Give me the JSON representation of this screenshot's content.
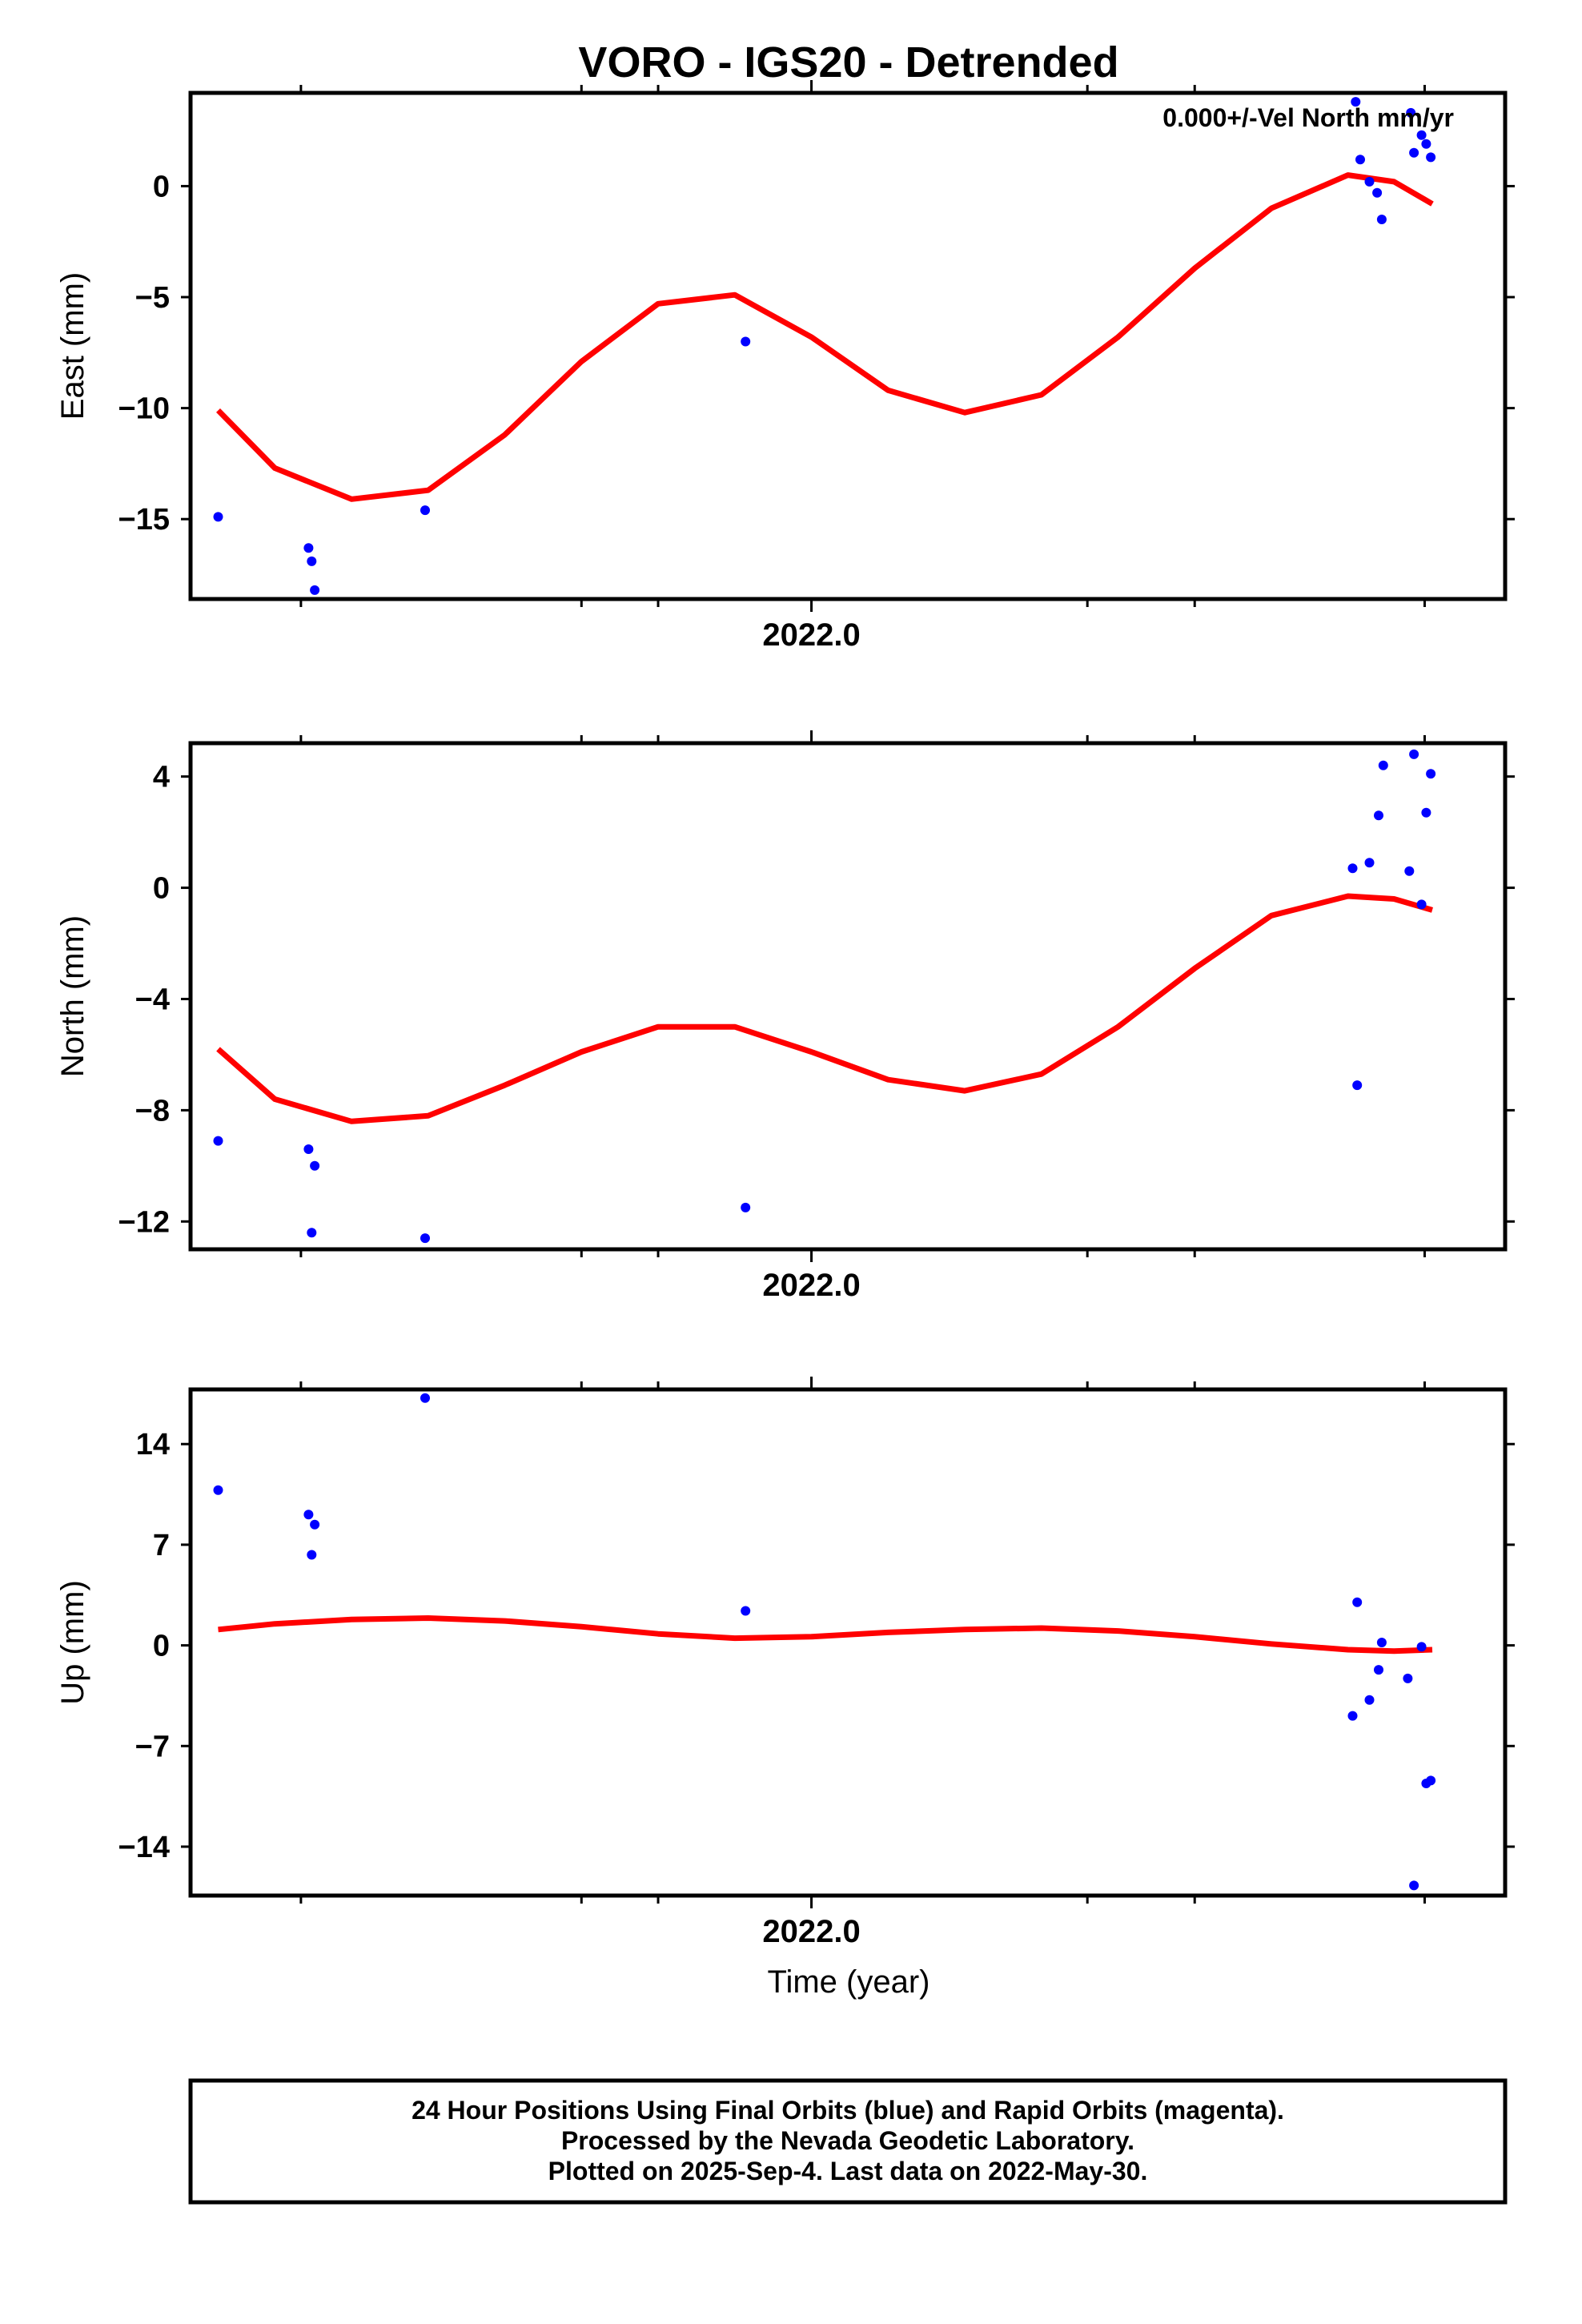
{
  "chart_data": {
    "title": "VORO - IGS20 - Detrended",
    "annotation": "0.000+/-Vel North mm/yr",
    "xlabel": "Time (year)",
    "x_tick_label": "2022.0",
    "xlim": [
      2021.595,
      2022.4525
    ],
    "colors": {
      "data": "#0000ff",
      "fit": "#ff0000",
      "frame": "#000000"
    },
    "panels": [
      {
        "type": "scatter",
        "name": "east",
        "ylabel": "East (mm)",
        "ylim": [
          -18.6,
          4.2
        ],
        "yticks": [
          0,
          -5,
          -10,
          -15
        ],
        "tick_labels": [
          "0",
          "−5",
          "−10",
          "−15"
        ],
        "points": [
          [
            2021.613,
            -14.9
          ],
          [
            2021.672,
            -16.3
          ],
          [
            2021.674,
            -16.9
          ],
          [
            2021.676,
            -18.2
          ],
          [
            2021.748,
            -14.6
          ],
          [
            2021.957,
            -7.0
          ],
          [
            2022.355,
            3.8
          ],
          [
            2022.358,
            1.2
          ],
          [
            2022.364,
            0.2
          ],
          [
            2022.369,
            -0.3
          ],
          [
            2022.372,
            -1.5
          ],
          [
            2022.391,
            3.3
          ],
          [
            2022.393,
            1.5
          ],
          [
            2022.398,
            2.3
          ],
          [
            2022.401,
            1.9
          ],
          [
            2022.404,
            1.3
          ]
        ],
        "fit": {
          "x": [
            2021.613,
            2021.65,
            2021.7,
            2021.75,
            2021.8,
            2021.85,
            2021.9,
            2021.95,
            2022.0,
            2022.05,
            2022.1,
            2022.15,
            2022.2,
            2022.25,
            2022.3,
            2022.35,
            2022.38,
            2022.405
          ],
          "y": [
            -10.1,
            -12.7,
            -14.1,
            -13.7,
            -11.2,
            -7.9,
            -5.3,
            -4.9,
            -6.8,
            -9.2,
            -10.2,
            -9.4,
            -6.8,
            -3.7,
            -1.0,
            0.5,
            0.2,
            -0.8
          ]
        }
      },
      {
        "type": "scatter",
        "name": "north",
        "ylabel": "North (mm)",
        "ylim": [
          -13.0,
          5.2
        ],
        "yticks": [
          4,
          0,
          -4,
          -8,
          -12
        ],
        "tick_labels": [
          "4",
          "0",
          "−4",
          "−8",
          "−12"
        ],
        "points": [
          [
            2021.613,
            -9.1
          ],
          [
            2021.672,
            -9.4
          ],
          [
            2021.674,
            -12.4
          ],
          [
            2021.676,
            -10.0
          ],
          [
            2021.748,
            -12.6
          ],
          [
            2021.957,
            -11.5
          ],
          [
            2022.353,
            0.7
          ],
          [
            2022.356,
            -7.1
          ],
          [
            2022.364,
            0.9
          ],
          [
            2022.37,
            2.6
          ],
          [
            2022.373,
            4.4
          ],
          [
            2022.39,
            0.6
          ],
          [
            2022.393,
            4.8
          ],
          [
            2022.398,
            -0.6
          ],
          [
            2022.401,
            2.7
          ],
          [
            2022.404,
            4.1
          ]
        ],
        "fit": {
          "x": [
            2021.613,
            2021.65,
            2021.7,
            2021.75,
            2021.8,
            2021.85,
            2021.9,
            2021.95,
            2022.0,
            2022.05,
            2022.1,
            2022.15,
            2022.2,
            2022.25,
            2022.3,
            2022.35,
            2022.38,
            2022.405
          ],
          "y": [
            -5.8,
            -7.6,
            -8.4,
            -8.2,
            -7.1,
            -5.9,
            -5.0,
            -5.0,
            -5.9,
            -6.9,
            -7.3,
            -6.7,
            -5.0,
            -2.9,
            -1.0,
            -0.3,
            -0.4,
            -0.8
          ]
        }
      },
      {
        "type": "scatter",
        "name": "up",
        "ylabel": "Up (mm)",
        "ylim": [
          -17.4,
          17.8
        ],
        "yticks": [
          14,
          7,
          0,
          -7,
          -14
        ],
        "tick_labels": [
          "14",
          "7",
          "0",
          "−7",
          "−14"
        ],
        "points": [
          [
            2021.613,
            10.8
          ],
          [
            2021.672,
            9.1
          ],
          [
            2021.674,
            6.3
          ],
          [
            2021.676,
            8.4
          ],
          [
            2021.748,
            17.2
          ],
          [
            2021.957,
            2.4
          ],
          [
            2022.353,
            -4.9
          ],
          [
            2022.356,
            3.0
          ],
          [
            2022.364,
            -3.8
          ],
          [
            2022.37,
            -1.7
          ],
          [
            2022.372,
            0.2
          ],
          [
            2022.389,
            -2.3
          ],
          [
            2022.393,
            -16.7
          ],
          [
            2022.398,
            -0.1
          ],
          [
            2022.401,
            -9.6
          ],
          [
            2022.404,
            -9.4
          ]
        ],
        "fit": {
          "x": [
            2021.613,
            2021.65,
            2021.7,
            2021.75,
            2021.8,
            2021.85,
            2021.9,
            2021.95,
            2022.0,
            2022.05,
            2022.1,
            2022.15,
            2022.2,
            2022.25,
            2022.3,
            2022.35,
            2022.38,
            2022.405
          ],
          "y": [
            1.1,
            1.5,
            1.8,
            1.9,
            1.7,
            1.3,
            0.8,
            0.5,
            0.6,
            0.9,
            1.1,
            1.2,
            1.0,
            0.6,
            0.1,
            -0.3,
            -0.4,
            -0.3
          ]
        }
      }
    ]
  },
  "footer": {
    "line1": "24 Hour Positions Using Final Orbits (blue) and Rapid Orbits (magenta).",
    "line2": "Processed by the Nevada Geodetic Laboratory.",
    "line3": "Plotted on 2025-Sep-4. Last data on 2022-May-30."
  }
}
